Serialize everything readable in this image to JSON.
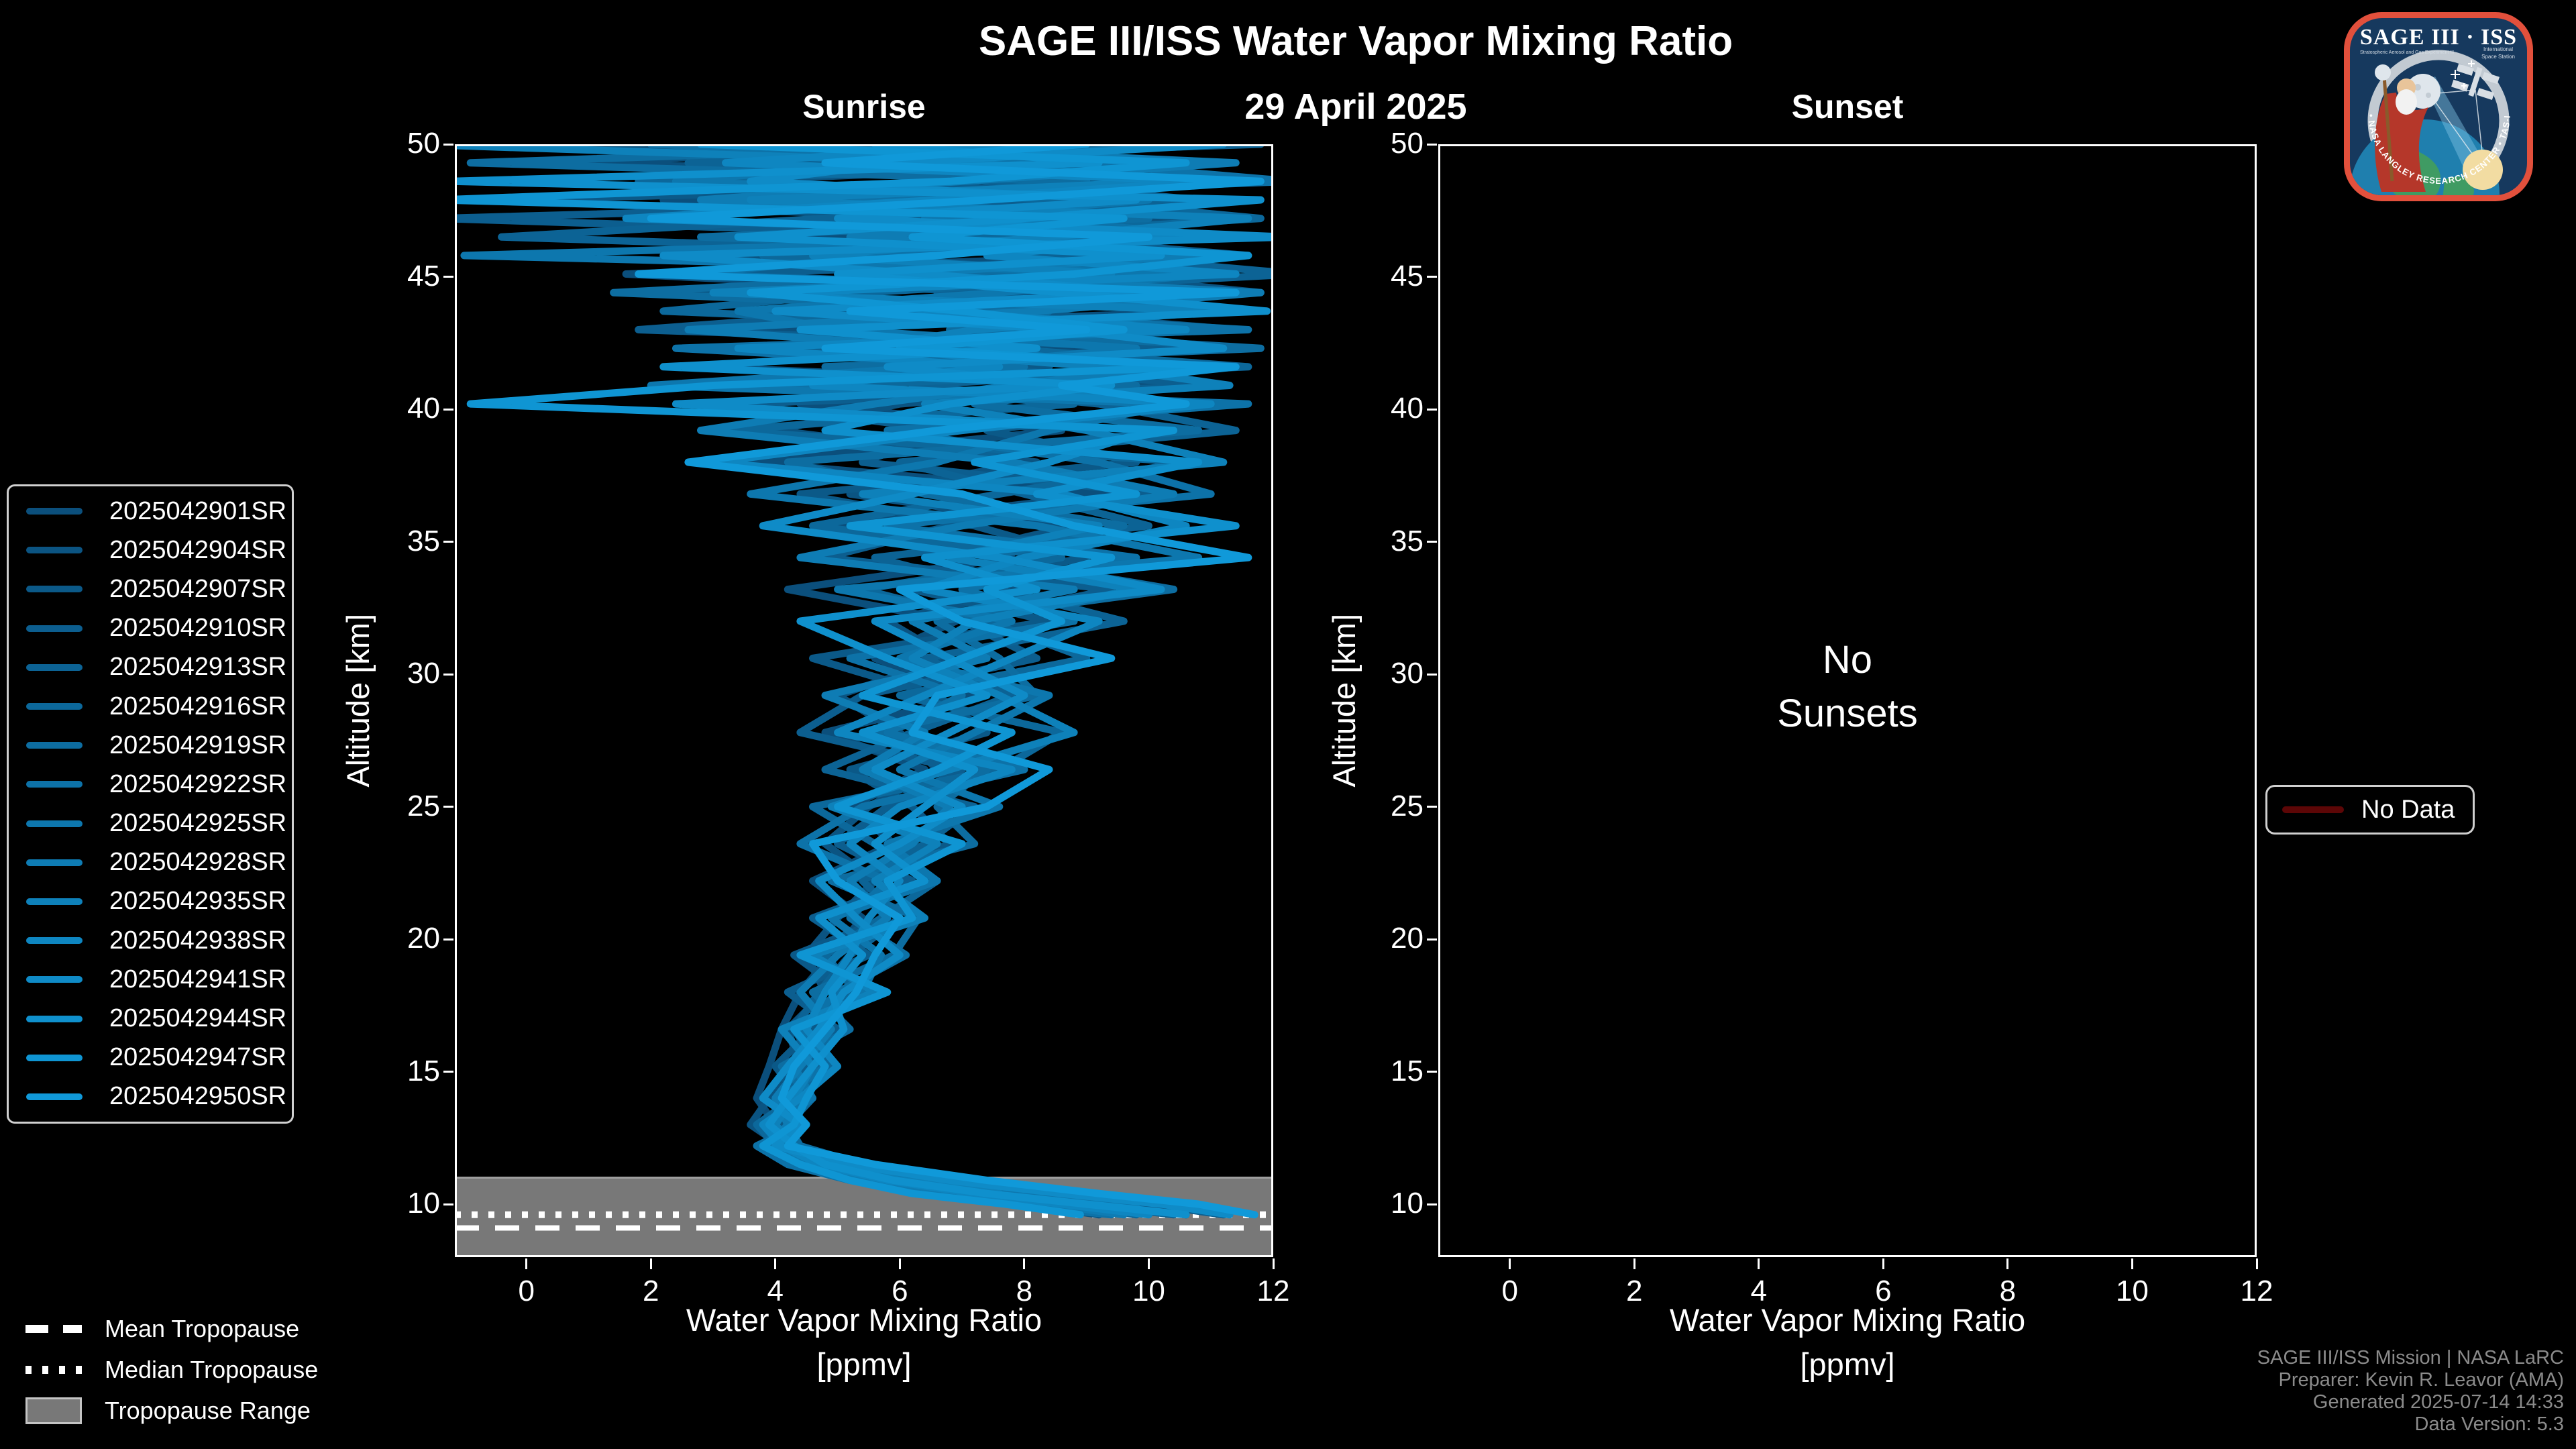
{
  "header": {
    "title": "SAGE III/ISS Water Vapor Mixing Ratio",
    "date": "29 April 2025"
  },
  "chart_data": {
    "type": "line",
    "xlabel": "Water Vapor Mixing Ratio",
    "xlabel_units": "[ppmv]",
    "ylabel": "Altitude [km]",
    "xlim": [
      -1.15,
      12
    ],
    "ylim": [
      8,
      50
    ],
    "xticks": [
      0,
      2,
      4,
      6,
      8,
      10,
      12
    ],
    "yticks": [
      10,
      15,
      20,
      25,
      30,
      35,
      40,
      45,
      50
    ],
    "legend_position": "left",
    "altitudes_km": [
      50.0,
      49.3,
      48.6,
      47.9,
      47.2,
      46.5,
      45.8,
      45.1,
      44.4,
      43.7,
      43.0,
      42.3,
      41.6,
      40.9,
      40.2,
      39.2,
      38.0,
      36.8,
      35.6,
      34.4,
      33.2,
      32.0,
      30.6,
      29.2,
      27.8,
      26.4,
      25.0,
      23.6,
      22.2,
      20.8,
      19.4,
      18.0,
      16.6,
      15.2,
      14.0,
      13.0,
      12.2,
      11.5,
      10.9,
      10.4,
      10.0,
      9.6
    ],
    "tropopause": {
      "mean_km": 9.1,
      "median_km": 9.6,
      "range_top_km": 11.0,
      "range_bottom_km": 8.0,
      "band_color": "#787878",
      "band_edge_color": "#9e9e9e",
      "line_color": "#ffffff"
    },
    "panels": [
      {
        "id": "sunrise",
        "title": "Sunrise",
        "series": [
          {
            "name": "2025042901SR",
            "color": "#0b4f7c",
            "values": [
              6.8,
              0.9,
              10.5,
              2.2,
              11.4,
              4.0,
              9.8,
              1.6,
              7.5,
              11.0,
              3.2,
              9.0,
              5.5,
              10.2,
              4.4,
              8.6,
              3.6,
              9.4,
              5.0,
              7.8,
              4.2,
              6.9,
              5.6,
              7.2,
              4.8,
              6.4,
              5.2,
              5.9,
              4.6,
              5.4,
              4.9,
              4.4,
              4.1,
              3.9,
              3.7,
              4.0,
              4.3,
              5.0,
              6.2,
              7.8,
              9.4,
              10.6
            ]
          },
          {
            "name": "2025042904SR",
            "color": "#0b5482",
            "values": [
              -1.6,
              9.8,
              3.0,
              11.2,
              5.6,
              10.4,
              2.4,
              8.8,
              11.8,
              4.6,
              10.0,
              6.4,
              2.8,
              9.6,
              6.0,
              4.0,
              8.2,
              5.2,
              8.8,
              6.6,
              8.0,
              5.8,
              6.8,
              5.0,
              6.0,
              6.6,
              5.5,
              4.8,
              5.6,
              5.0,
              4.5,
              4.8,
              4.2,
              4.4,
              3.9,
              3.6,
              4.1,
              4.6,
              5.4,
              6.6,
              8.0,
              9.2
            ]
          },
          {
            "name": "2025042907SR",
            "color": "#0b5988",
            "values": [
              9.6,
              4.2,
              11.6,
              -0.6,
              7.0,
              11.0,
              5.2,
              9.2,
              2.0,
              7.8,
              11.4,
              3.8,
              8.4,
              2.6,
              10.8,
              7.4,
              9.8,
              4.4,
              7.2,
              9.0,
              6.2,
              8.4,
              4.6,
              6.6,
              7.4,
              5.2,
              6.2,
              6.8,
              5.2,
              5.8,
              4.3,
              5.1,
              4.6,
              4.0,
              4.4,
              4.1,
              3.8,
              4.4,
              5.8,
              7.2,
              null,
              null
            ]
          },
          {
            "name": "2025042910SR",
            "color": "#0c5e8f",
            "values": [
              3.4,
              11.0,
              6.2,
              9.4,
              -1.4,
              8.0,
              11.6,
              3.0,
              9.8,
              5.8,
              1.8,
              10.6,
              7.0,
              11.2,
              3.4,
              6.8,
              5.4,
              10.2,
              6.8,
              4.8,
              9.4,
              7.0,
              8.2,
              5.4,
              4.4,
              7.0,
              5.8,
              5.0,
              6.2,
              4.6,
              5.5,
              4.2,
              5.0,
              4.5,
              4.2,
              3.8,
              4.2,
              5.2,
              6.6,
              8.4,
              10.0,
              11.2
            ]
          },
          {
            "name": "2025042913SR",
            "color": "#0c6395",
            "values": [
              11.8,
              2.6,
              7.6,
              10.8,
              4.8,
              -0.4,
              9.0,
              12.4,
              6.6,
              10.4,
              8.0,
              4.2,
              11.0,
              6.2,
              9.2,
              11.4,
              6.0,
              8.0,
              10.0,
              5.6,
              7.6,
              9.6,
              6.4,
              7.8,
              6.2,
              4.8,
              7.2,
              6.4,
              5.4,
              6.0,
              5.2,
              4.7,
              4.3,
              4.7,
              4.0,
              4.3,
              3.9,
              4.8,
              6.0,
              7.4,
              9.0,
              10.4
            ]
          },
          {
            "name": "2025042916SR",
            "color": "#0c689b",
            "values": [
              5.0,
              10.2,
              1.8,
              8.6,
              11.8,
              6.8,
              3.8,
              10.6,
              5.4,
              2.2,
              9.4,
              7.6,
              11.6,
              5.0,
              8.8,
              3.2,
              10.6,
              7.6,
              4.6,
              8.6,
              5.4,
              7.4,
              9.0,
              6.0,
              8.6,
              7.6,
              4.6,
              5.6,
              6.6,
              5.7,
              4.8,
              5.3,
              4.4,
              4.9,
              4.3,
              3.7,
              4.0,
              4.6,
              5.6,
              7.0,
              8.6,
              9.8
            ]
          },
          {
            "name": "2025042919SR",
            "color": "#0d6da1",
            "values": [
              8.2,
              -0.9,
              9.0,
              5.4,
              10.0,
              2.8,
              11.2,
              7.2,
              1.4,
              8.4,
              6.8,
              11.8,
              4.8,
              9.8,
              7.2,
              10.8,
              4.2,
              6.4,
              9.6,
              7.4,
              10.4,
              6.6,
              7.6,
              8.2,
              5.6,
              7.4,
              6.6,
              7.2,
              4.9,
              6.3,
              5.9,
              4.6,
              5.2,
              4.1,
              4.6,
              4.2,
              4.4,
              5.4,
              7.0,
              8.8,
              10.4,
              null
            ]
          },
          {
            "name": "2025042922SR",
            "color": "#0d72a8",
            "values": [
              2.0,
              8.8,
              12.3,
              4.4,
              7.8,
              11.4,
              5.8,
              2.6,
              10.2,
              6.2,
              11.6,
              2.4,
              8.0,
              3.8,
              11.6,
              5.8,
              9.2,
              11.0,
              5.8,
              9.8,
              7.0,
              8.8,
              5.2,
              7.0,
              5.8,
              8.0,
              5.4,
              4.4,
              5.8,
              5.2,
              6.1,
              5.0,
              4.4,
              4.8,
              4.1,
              4.4,
              3.7,
              4.2,
              5.2,
              6.4,
              7.8,
              9.4
            ]
          },
          {
            "name": "2025042925SR",
            "color": "#0d77ae",
            "values": [
              10.8,
              5.8,
              2.4,
              10.0,
              6.4,
              9.6,
              -1.0,
              11.0,
              7.6,
              3.4,
              5.0,
              9.8,
              6.6,
              2.0,
              10.4,
              8.4,
              6.6,
              3.6,
              8.2,
              10.8,
              5.0,
              7.8,
              6.0,
              8.4,
              7.2,
              6.0,
              7.6,
              5.8,
              6.6,
              4.9,
              5.7,
              5.4,
              4.7,
              4.3,
              4.6,
              3.9,
              4.2,
              4.9,
              6.4,
              8.2,
              9.8,
              null
            ]
          },
          {
            "name": "2025042928SR",
            "color": "#0e7cb4",
            "values": [
              4.6,
              11.4,
              7.0,
              2.8,
              9.2,
              5.2,
              10.8,
              6.0,
              11.8,
              8.2,
              2.6,
              6.8,
              10.2,
              7.8,
              5.6,
              2.8,
              7.8,
              10.4,
              7.0,
              4.4,
              8.8,
              6.2,
              7.4,
              4.8,
              6.4,
              5.4,
              6.8,
              6.2,
              5.2,
              5.8,
              5.0,
              4.4,
              4.9,
              4.4,
              4.0,
              4.2,
              3.9,
              4.5,
              5.5,
              6.8,
              8.4,
              9.6
            ]
          },
          {
            "name": "2025042935SR",
            "color": "#0e81ba",
            "values": [
              -1.8,
              7.2,
              10.4,
              3.6,
              11.6,
              8.4,
              4.6,
              9.4,
              3.0,
              11.2,
              7.2,
              5.4,
              9.2,
              11.3,
              6.4,
              9.0,
              11.2,
              5.4,
              9.2,
              6.8,
              9.8,
              7.2,
              6.2,
              7.6,
              8.8,
              6.8,
              4.9,
              6.6,
              5.6,
              6.4,
              4.6,
              5.6,
              4.1,
              4.6,
              4.3,
              4.0,
              4.3,
              5.0,
              6.0,
              7.6,
              null,
              null
            ]
          },
          {
            "name": "2025042938SR",
            "color": "#0e86c1",
            "values": [
              7.8,
              3.2,
              11.0,
              6.6,
              1.6,
              10.6,
              7.4,
              11.4,
              4.2,
              6.6,
              10.6,
              3.4,
              7.6,
              4.6,
              11.0,
              7.0,
              3.0,
              8.6,
              10.6,
              8.0,
              6.4,
              9.2,
              7.8,
              6.4,
              5.0,
              7.8,
              6.0,
              5.2,
              6.0,
              5.5,
              5.2,
              4.8,
              4.5,
              5.0,
              4.4,
              3.8,
              4.1,
              4.7,
              5.8,
              7.2,
              8.6,
              10.0
            ]
          },
          {
            "name": "2025042941SR",
            "color": "#0f8bc7",
            "values": [
              11.2,
              6.0,
              3.6,
              9.8,
              5.0,
              12.2,
              2.2,
              6.4,
              10.0,
              4.0,
              8.6,
              11.2,
              5.8,
              8.8,
              2.4,
              10.0,
              8.4,
              6.2,
              3.8,
              7.6,
              10.2,
              5.6,
              6.8,
              8.0,
              6.8,
              5.6,
              7.0,
              6.0,
              4.7,
              5.3,
              6.0,
              5.1,
              4.7,
              4.2,
              3.8,
              4.4,
              4.0,
              5.2,
              6.8,
              8.6,
              10.2,
              11.3
            ]
          },
          {
            "name": "2025042944SR",
            "color": "#0f90cd",
            "values": [
              5.6,
              9.2,
              -1.2,
              11.8,
              8.0,
              3.4,
              10.2,
              5.0,
              8.6,
              11.9,
              4.4,
              8.2,
              2.2,
              9.4,
              6.8,
              4.8,
              10.8,
              8.2,
              11.4,
              6.4,
              8.2,
              4.4,
              5.8,
              7.4,
              5.4,
              7.2,
              6.4,
              5.6,
              6.4,
              4.7,
              5.4,
              4.9,
              5.1,
              4.6,
              4.2,
              3.9,
              4.3,
              4.8,
              5.9,
              7.4,
              9.0,
              10.6
            ]
          },
          {
            "name": "2025042947SR",
            "color": "#0f95d3",
            "values": [
              2.8,
              10.6,
              6.8,
              -1.4,
              9.6,
              6.2,
              11.6,
              8.8,
              3.6,
              7.0,
              9.6,
              6.0,
              10.8,
              3.0,
              -0.9,
              10.4,
              7.2,
              9.8,
              5.2,
              9.4,
              7.4,
              8.6,
              7.0,
              5.4,
              7.8,
              6.6,
              5.0,
              7.0,
              5.8,
              6.2,
              4.4,
              5.8,
              4.3,
              4.8,
              4.5,
              4.3,
              3.8,
              4.4,
              5.2,
              6.2,
              7.7,
              8.9
            ]
          },
          {
            "name": "2025042950SR",
            "color": "#1099d9",
            "values": [
              9.0,
              4.8,
              11.8,
              7.4,
              2.0,
              10.0,
              6.6,
              1.8,
              11.4,
              5.2,
              9.0,
              4.8,
              11.4,
              8.6,
              10.6,
              6.6,
              2.6,
              7.0,
              8.8,
              11.6,
              6.0,
              7.0,
              9.4,
              6.6,
              6.2,
              8.4,
              7.4,
              4.6,
              5.0,
              6.0,
              5.6,
              5.3,
              4.8,
              4.3,
              4.1,
              4.5,
              4.2,
              5.6,
              7.4,
              9.2,
              10.8,
              11.7
            ]
          }
        ]
      },
      {
        "id": "sunset",
        "title": "Sunset",
        "series": [],
        "empty_message": [
          "No",
          "Sunsets"
        ],
        "no_data_legend": {
          "label": "No Data",
          "color": "#5c0606"
        }
      }
    ]
  },
  "tropopause_legend": {
    "mean": "Mean Tropopause",
    "median": "Median Tropopause",
    "range": "Tropopause Range"
  },
  "credits": [
    "SAGE III/ISS Mission | NASA LaRC",
    "Preparer: Kevin R. Leavor (AMA)",
    "Generated 2025-07-14 14:33",
    "Data Version: 5.3"
  ],
  "logo": {
    "title": "SAGE III · ISS",
    "tagline_left": "Stratospheric Aerosol and Gas Experiment III",
    "tagline_right_1": "International",
    "tagline_right_2": "Space Station",
    "ring_text": "BALL • NASA LANGLEY RESEARCH CENTER • TAS-I • ESA"
  }
}
